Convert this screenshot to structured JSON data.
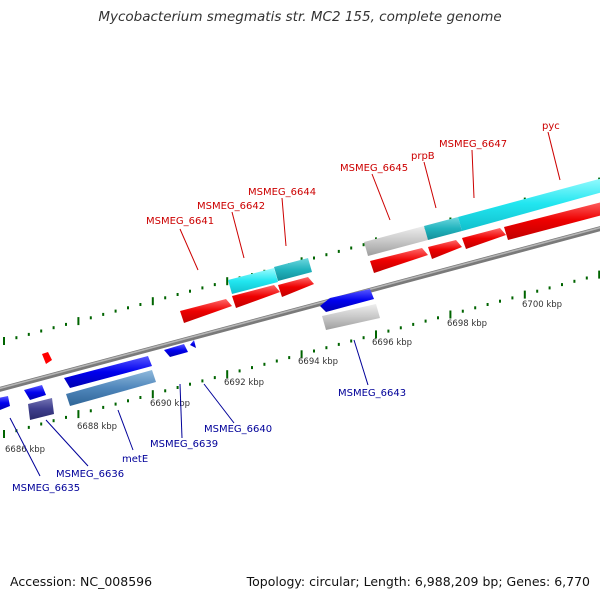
{
  "title": "Mycobacterium smegmatis str. MC2 155, complete genome",
  "footer": {
    "accession": "Accession: NC_008596",
    "summary": "Topology: circular; Length: 6,988,209 bp; Genes: 6,770"
  },
  "colors": {
    "forward": "#ff0000",
    "reverse": "#0000ff",
    "label_forward": "#cc0000",
    "label_reverse": "#000099",
    "tick": "#006400",
    "backbone": "#888888"
  },
  "ticks": [
    {
      "text": "6686 kbp"
    },
    {
      "text": "6688 kbp"
    },
    {
      "text": "6690 kbp"
    },
    {
      "text": "6692 kbp"
    },
    {
      "text": "6694 kbp"
    },
    {
      "text": "6696 kbp"
    },
    {
      "text": "6698 kbp"
    },
    {
      "text": "6700 kbp"
    }
  ],
  "gene_labels": [
    {
      "text": "MSMEG_6635",
      "strand": "reverse"
    },
    {
      "text": "MSMEG_6636",
      "strand": "reverse"
    },
    {
      "text": "metE",
      "strand": "reverse"
    },
    {
      "text": "MSMEG_6639",
      "strand": "reverse"
    },
    {
      "text": "MSMEG_6640",
      "strand": "reverse"
    },
    {
      "text": "MSMEG_6641",
      "strand": "forward"
    },
    {
      "text": "MSMEG_6642",
      "strand": "forward"
    },
    {
      "text": "MSMEG_6644",
      "strand": "forward"
    },
    {
      "text": "MSMEG_6643",
      "strand": "reverse"
    },
    {
      "text": "MSMEG_6645",
      "strand": "forward"
    },
    {
      "text": "prpB",
      "strand": "forward"
    },
    {
      "text": "MSMEG_6647",
      "strand": "forward"
    },
    {
      "text": "pyc",
      "strand": "forward"
    }
  ]
}
